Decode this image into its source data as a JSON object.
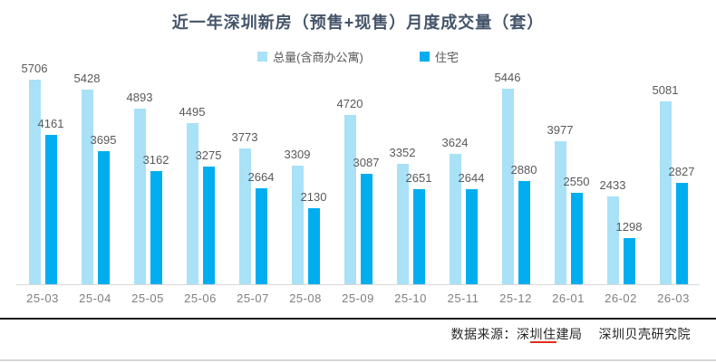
{
  "chart_data": {
    "type": "bar",
    "title": "近一年深圳新房（预售+现售）月度成交量（套）",
    "categories": [
      "25-03",
      "25-04",
      "25-05",
      "25-06",
      "25-07",
      "25-08",
      "25-09",
      "25-10",
      "25-11",
      "25-12",
      "26-01",
      "26-02",
      "26-03"
    ],
    "series": [
      {
        "name": "总量(含商办公寓)",
        "color": "#A9E1F6",
        "values": [
          5706,
          5428,
          4893,
          4495,
          3773,
          3309,
          4720,
          3352,
          3624,
          5446,
          3977,
          2433,
          5081
        ]
      },
      {
        "name": "住宅",
        "color": "#00AEEF",
        "values": [
          4161,
          3695,
          3162,
          3275,
          2664,
          2130,
          3087,
          2651,
          2644,
          2880,
          2550,
          1298,
          2827
        ]
      }
    ],
    "xlabel": "",
    "ylabel": "",
    "ylim": [
      0,
      6000
    ],
    "grid": false,
    "legend_position": "top",
    "value_labels": true
  },
  "footer": {
    "source": [
      {
        "text": "数据来源：深",
        "underline": false
      },
      {
        "text": "圳住",
        "underline": true
      },
      {
        "text": "建局",
        "underline": false
      }
    ],
    "source_secondary": "深圳贝壳研究院"
  },
  "colors": {
    "title": "#44546A",
    "bar_total": "#A9E1F6",
    "bar_residential": "#00AEEF",
    "value_label": "#595959",
    "tick_label": "#7F7F7F",
    "axis_line": "#D9D9D9",
    "divider": "#141414",
    "underline": "#E0301E"
  }
}
